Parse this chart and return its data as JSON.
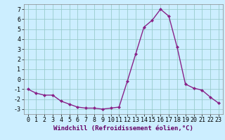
{
  "x": [
    0,
    1,
    2,
    3,
    4,
    5,
    6,
    7,
    8,
    9,
    10,
    11,
    12,
    13,
    14,
    15,
    16,
    17,
    18,
    19,
    20,
    21,
    22,
    23
  ],
  "y": [
    -1.0,
    -1.4,
    -1.6,
    -1.6,
    -2.2,
    -2.5,
    -2.8,
    -2.9,
    -2.9,
    -3.0,
    -2.9,
    -2.8,
    -0.2,
    2.5,
    5.2,
    5.9,
    7.0,
    6.3,
    3.2,
    -0.5,
    -0.9,
    -1.1,
    -1.8,
    -2.4
  ],
  "line_color": "#882288",
  "marker": "D",
  "marker_size": 2.0,
  "bg_color": "#cceeff",
  "grid_color": "#99cccc",
  "xlabel": "Windchill (Refroidissement éolien,°C)",
  "xlim": [
    -0.5,
    23.5
  ],
  "ylim": [
    -3.5,
    7.5
  ],
  "yticks": [
    -3,
    -2,
    -1,
    0,
    1,
    2,
    3,
    4,
    5,
    6,
    7
  ],
  "xticks": [
    0,
    1,
    2,
    3,
    4,
    5,
    6,
    7,
    8,
    9,
    10,
    11,
    12,
    13,
    14,
    15,
    16,
    17,
    18,
    19,
    20,
    21,
    22,
    23
  ],
  "xlabel_fontsize": 6.5,
  "tick_fontsize": 6.0,
  "line_width": 1.0
}
